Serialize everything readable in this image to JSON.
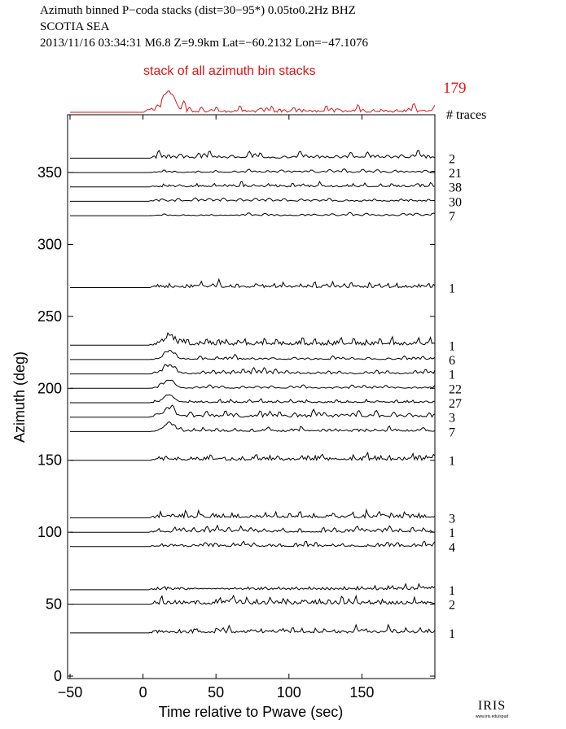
{
  "header": {
    "line1": "Azimuth binned P−coda stacks (dist=30−95*)  0.05to0.2Hz  BHZ",
    "line2": "SCOTIA SEA",
    "line3": "2013/11/16  03:34:31  M6.8  Z=9.9km Lat=−60.2132 Lon=−47.1076"
  },
  "stack": {
    "label": "stack of all azimuth bin stacks",
    "count": "179"
  },
  "traces_header": "# traces",
  "logo": {
    "text": "IRIS",
    "subtext": "www.iris.edu/spud"
  },
  "colors": {
    "stack": "#e01414",
    "trace": "#000000"
  },
  "chart_data": {
    "type": "line",
    "xlabel": "Time relative to Pwave (sec)",
    "ylabel": "Azimuth (deg)",
    "xlim": [
      -50,
      200
    ],
    "ylim": [
      0,
      380
    ],
    "xticks": [
      -50,
      0,
      50,
      100,
      150
    ],
    "yticks": [
      0,
      50,
      100,
      150,
      200,
      250,
      300,
      350
    ],
    "grid": false,
    "bins": [
      {
        "azimuth": 360,
        "count": "2"
      },
      {
        "azimuth": 350,
        "count": "21"
      },
      {
        "azimuth": 340,
        "count": "38"
      },
      {
        "azimuth": 330,
        "count": "30"
      },
      {
        "azimuth": 320,
        "count": "7"
      },
      {
        "azimuth": 270,
        "count": "1"
      },
      {
        "azimuth": 230,
        "count": "1"
      },
      {
        "azimuth": 220,
        "count": "6"
      },
      {
        "azimuth": 210,
        "count": "1"
      },
      {
        "azimuth": 200,
        "count": "22"
      },
      {
        "azimuth": 190,
        "count": "27"
      },
      {
        "azimuth": 180,
        "count": "3"
      },
      {
        "azimuth": 170,
        "count": "7"
      },
      {
        "azimuth": 150,
        "count": "1"
      },
      {
        "azimuth": 110,
        "count": "3"
      },
      {
        "azimuth": 100,
        "count": "1"
      },
      {
        "azimuth": 90,
        "count": "4"
      },
      {
        "azimuth": 60,
        "count": "1"
      },
      {
        "azimuth": 50,
        "count": "2"
      },
      {
        "azimuth": 30,
        "count": "1"
      }
    ]
  }
}
